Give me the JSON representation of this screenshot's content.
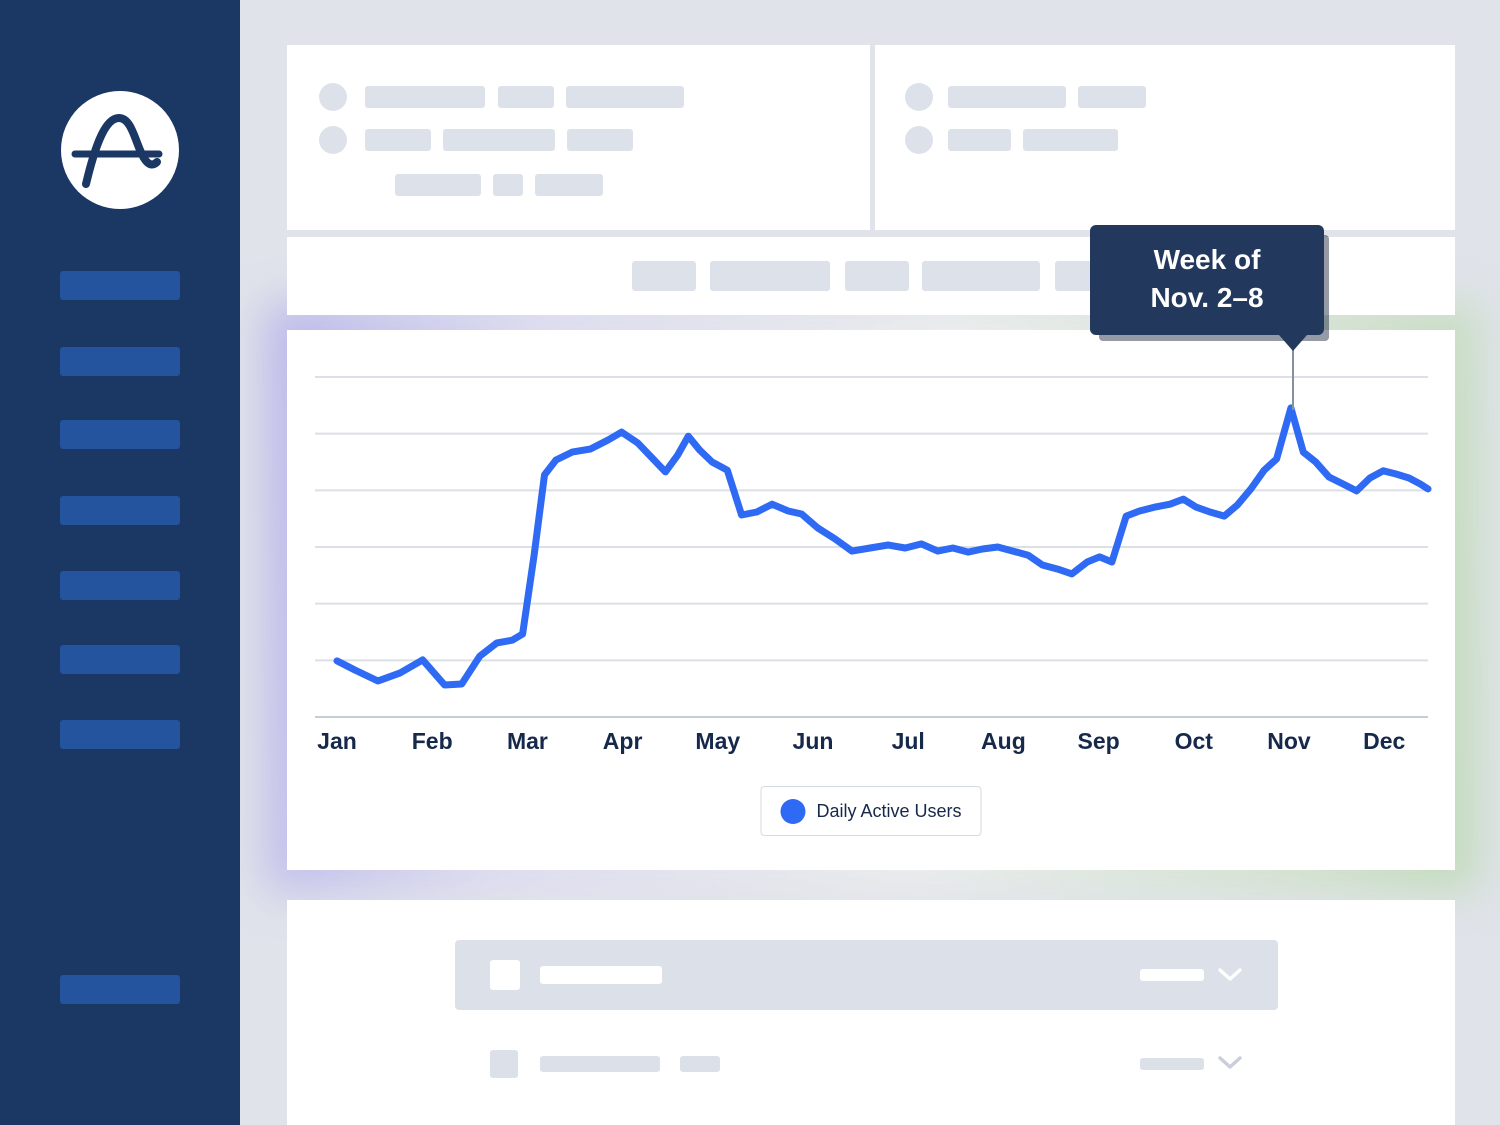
{
  "brand": {
    "logo_icon": "amplitude-wave-a-logo"
  },
  "colors": {
    "sidebar_bg": "#1b3764",
    "sidebar_item": "#24549e",
    "accent_blue": "#2e6af3",
    "tooltip_bg": "#22395d",
    "placeholder_gray": "#dde1e9",
    "text_dark": "#16294b"
  },
  "chart_data": {
    "type": "line",
    "title": "",
    "x_tick_labels": [
      "Jan",
      "Feb",
      "Mar",
      "Apr",
      "May",
      "Jun",
      "Jul",
      "Aug",
      "Sep",
      "Oct",
      "Nov",
      "Dec"
    ],
    "y_axis": {
      "min": 0,
      "max": 100,
      "gridline_count": 7,
      "tick_labels_visible": false
    },
    "legend": {
      "position": "bottom-center",
      "entries": [
        {
          "label": "Daily Active Users",
          "color": "#2e6af3"
        }
      ]
    },
    "annotation": {
      "line1": "Week of",
      "line2": "Nov. 2–8",
      "target": {
        "month": "Nov",
        "x": 10.02,
        "value": 91
      }
    },
    "series": [
      {
        "name": "Daily Active Users",
        "color": "#2e6af3",
        "points": [
          [
            0.0,
            16.5
          ],
          [
            0.19,
            13.8
          ],
          [
            0.43,
            10.6
          ],
          [
            0.66,
            12.9
          ],
          [
            0.9,
            16.8
          ],
          [
            1.13,
            9.4
          ],
          [
            1.31,
            9.7
          ],
          [
            1.5,
            17.9
          ],
          [
            1.68,
            21.8
          ],
          [
            1.84,
            22.6
          ],
          [
            1.95,
            24.4
          ],
          [
            2.07,
            47.6
          ],
          [
            2.18,
            71.2
          ],
          [
            2.3,
            75.6
          ],
          [
            2.47,
            77.9
          ],
          [
            2.66,
            78.8
          ],
          [
            2.85,
            81.5
          ],
          [
            2.99,
            83.8
          ],
          [
            3.16,
            80.6
          ],
          [
            3.31,
            76.2
          ],
          [
            3.45,
            72.1
          ],
          [
            3.58,
            77.1
          ],
          [
            3.69,
            82.6
          ],
          [
            3.81,
            78.5
          ],
          [
            3.94,
            75.0
          ],
          [
            4.1,
            72.6
          ],
          [
            4.25,
            59.4
          ],
          [
            4.41,
            60.3
          ],
          [
            4.57,
            62.6
          ],
          [
            4.74,
            60.6
          ],
          [
            4.88,
            59.7
          ],
          [
            5.05,
            55.6
          ],
          [
            5.23,
            52.4
          ],
          [
            5.41,
            48.8
          ],
          [
            5.6,
            49.7
          ],
          [
            5.79,
            50.6
          ],
          [
            5.97,
            49.7
          ],
          [
            6.14,
            50.9
          ],
          [
            6.31,
            48.8
          ],
          [
            6.47,
            49.7
          ],
          [
            6.63,
            48.5
          ],
          [
            6.78,
            49.4
          ],
          [
            6.94,
            50.0
          ],
          [
            7.1,
            48.8
          ],
          [
            7.26,
            47.6
          ],
          [
            7.41,
            44.7
          ],
          [
            7.57,
            43.5
          ],
          [
            7.72,
            42.1
          ],
          [
            7.88,
            45.6
          ],
          [
            8.01,
            47.1
          ],
          [
            8.14,
            45.6
          ],
          [
            8.29,
            59.1
          ],
          [
            8.43,
            60.6
          ],
          [
            8.6,
            61.8
          ],
          [
            8.75,
            62.6
          ],
          [
            8.89,
            64.1
          ],
          [
            9.02,
            61.8
          ],
          [
            9.17,
            60.3
          ],
          [
            9.32,
            59.1
          ],
          [
            9.46,
            62.4
          ],
          [
            9.6,
            67.1
          ],
          [
            9.74,
            72.6
          ],
          [
            9.87,
            75.9
          ],
          [
            10.02,
            90.9
          ],
          [
            10.15,
            77.9
          ],
          [
            10.28,
            75.0
          ],
          [
            10.42,
            70.6
          ],
          [
            10.57,
            68.5
          ],
          [
            10.71,
            66.5
          ],
          [
            10.85,
            70.3
          ],
          [
            10.99,
            72.4
          ],
          [
            11.12,
            71.5
          ],
          [
            11.26,
            70.3
          ],
          [
            11.38,
            68.5
          ],
          [
            11.46,
            67.1
          ]
        ]
      }
    ]
  }
}
